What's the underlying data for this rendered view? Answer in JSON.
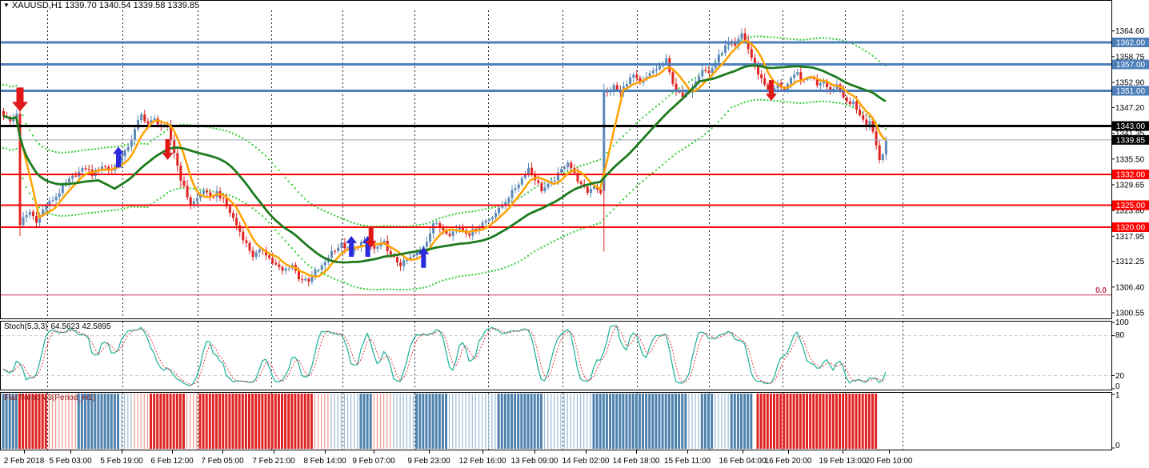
{
  "header": {
    "title": "XAUUSD,H1  1339.70 1340.54 1339.58 1339.85"
  },
  "panels": {
    "stoch": {
      "label": "Stoch(5,3,3)",
      "values": "64.5623 42.5895",
      "axis_labels": [
        [
          100,
          406
        ],
        [
          80,
          422
        ],
        [
          20,
          473
        ],
        [
          0,
          486
        ]
      ],
      "level_lines": [
        80,
        20
      ]
    },
    "flat": {
      "label": "Flat Trend V3(Period_H1)",
      "axis_labels": [
        [
          1,
          497
        ],
        [
          0,
          560
        ]
      ]
    }
  },
  "colors": {
    "up": "#5d89ba",
    "down": "#e02424",
    "maFast": "#ffa200",
    "maSlow": "#1d7a1d",
    "band": "#33cc33",
    "blueLine": "#4d7fba",
    "redLine": "#ff0000",
    "blackLine": "#000000",
    "priceLine": "#9aa7b5",
    "zeroLine": "#d03050",
    "stochK": "#2ab5a0",
    "stochD": "#e03a3a",
    "grid": "#c9c9c9",
    "sep": "#222222",
    "flat": {
      "R": "#e02424",
      "r": "#f0988e",
      "B": "#4f81ae",
      "b": "#9bbad6"
    },
    "badgeText": "#ffffff",
    "axisText": "#000000",
    "arrowUp": "#2b2bdd",
    "arrowDown": "#e01818"
  },
  "chart_data": {
    "type": "candlestick",
    "symbol": "XAUUSD",
    "timeframe": "H1",
    "ohlc_display": {
      "open": "1339.70",
      "high": "1340.54",
      "low": "1339.58",
      "close": "1339.85"
    },
    "bar_count": 270,
    "y_ticks": [
      1364.6,
      1358.75,
      1352.9,
      1347.2,
      1341.35,
      1335.5,
      1329.65,
      1323.8,
      1317.95,
      1312.25,
      1306.4,
      1300.55
    ],
    "x_labels": [
      [
        30,
        "2 Feb 2018"
      ],
      [
        88,
        "5 Feb 03:00"
      ],
      [
        152,
        "5 Feb 19:00"
      ],
      [
        215,
        "6 Feb 12:00"
      ],
      [
        278,
        "7 Feb 05:00"
      ],
      [
        342,
        "7 Feb 21:00"
      ],
      [
        406,
        "8 Feb 14:00"
      ],
      [
        467,
        "9 Feb 07:00"
      ],
      [
        536,
        "9 Feb 23:00"
      ],
      [
        603,
        "12 Feb 16:00"
      ],
      [
        668,
        "13 Feb 09:00"
      ],
      [
        732,
        "14 Feb 02:00"
      ],
      [
        795,
        "14 Feb 18:00"
      ],
      [
        859,
        "15 Feb 11:00"
      ],
      [
        928,
        "16 Feb 04:00"
      ],
      [
        985,
        "16 Feb 20:00"
      ],
      [
        1053,
        "19 Feb 13:00"
      ],
      [
        1111,
        "20 Feb 10:00"
      ]
    ],
    "day_separators_x": [
      59,
      153,
      247,
      339,
      428,
      518,
      610,
      703,
      796,
      886,
      978,
      1056,
      1128
    ],
    "hlines": [
      {
        "price": 1362.0,
        "color": "blueLine",
        "w": 3,
        "badge": "1362.00",
        "badgeColor": "#4d7fba"
      },
      {
        "price": 1357.0,
        "color": "blueLine",
        "w": 3,
        "badge": "1357.00",
        "badgeColor": "#4d7fba"
      },
      {
        "price": 1351.0,
        "color": "blueLine",
        "w": 3,
        "badge": "1351.00",
        "badgeColor": "#4d7fba"
      },
      {
        "price": 1343.0,
        "color": "blackLine",
        "w": 3,
        "badge": "1343.00",
        "badgeColor": "#000000"
      },
      {
        "price": 1339.85,
        "color": "priceLine",
        "w": 1,
        "badge": "1339.85",
        "badgeColor": "#000000"
      },
      {
        "price": 1332.0,
        "color": "redLine",
        "w": 2,
        "badge": "1332.00",
        "badgeColor": "#ff0000"
      },
      {
        "price": 1325.0,
        "color": "redLine",
        "w": 2,
        "badge": "1325.00",
        "badgeColor": "#ff0000"
      },
      {
        "price": 1320.0,
        "color": "redLine",
        "w": 2,
        "badge": "1320.00",
        "badgeColor": "#ff0000"
      },
      {
        "price": 1304.6,
        "color": "zeroLine",
        "w": 1,
        "badge": null
      }
    ],
    "zero_label": "0.0",
    "close_anchors": [
      [
        0,
        1345.5
      ],
      [
        2,
        1344
      ],
      [
        4,
        1346
      ],
      [
        5,
        1321
      ],
      [
        6,
        1322
      ],
      [
        8,
        1323.5
      ],
      [
        10,
        1321.5
      ],
      [
        13,
        1325
      ],
      [
        16,
        1327
      ],
      [
        19,
        1330
      ],
      [
        22,
        1332
      ],
      [
        25,
        1333.5
      ],
      [
        27,
        1332
      ],
      [
        30,
        1334
      ],
      [
        33,
        1333
      ],
      [
        35,
        1335
      ],
      [
        37,
        1337
      ],
      [
        39,
        1340
      ],
      [
        41,
        1344
      ],
      [
        42,
        1345.5
      ],
      [
        44,
        1343.5
      ],
      [
        46,
        1344.5
      ],
      [
        48,
        1343
      ],
      [
        50,
        1342.5
      ],
      [
        52,
        1337
      ],
      [
        54,
        1331
      ],
      [
        56,
        1327
      ],
      [
        57,
        1325
      ],
      [
        59,
        1326.5
      ],
      [
        61,
        1328.5
      ],
      [
        63,
        1326.5
      ],
      [
        65,
        1328
      ],
      [
        67,
        1326
      ],
      [
        70,
        1322
      ],
      [
        73,
        1317.5
      ],
      [
        76,
        1313.5
      ],
      [
        79,
        1315
      ],
      [
        82,
        1312
      ],
      [
        85,
        1310
      ],
      [
        88,
        1311.5
      ],
      [
        90,
        1308.5
      ],
      [
        93,
        1307.5
      ],
      [
        95,
        1310
      ],
      [
        97,
        1311
      ],
      [
        100,
        1314.5
      ],
      [
        103,
        1316
      ],
      [
        106,
        1314.5
      ],
      [
        109,
        1316.5
      ],
      [
        111,
        1317
      ],
      [
        113,
        1315
      ],
      [
        116,
        1316.5
      ],
      [
        118,
        1313.5
      ],
      [
        121,
        1311.5
      ],
      [
        124,
        1313
      ],
      [
        127,
        1314.5
      ],
      [
        129,
        1317
      ],
      [
        131,
        1321
      ],
      [
        133,
        1320
      ],
      [
        136,
        1318.5
      ],
      [
        139,
        1320
      ],
      [
        142,
        1318.5
      ],
      [
        145,
        1320.5
      ],
      [
        148,
        1322
      ],
      [
        151,
        1324
      ],
      [
        154,
        1327
      ],
      [
        157,
        1330
      ],
      [
        160,
        1333.5
      ],
      [
        162,
        1331
      ],
      [
        164,
        1328.5
      ],
      [
        167,
        1330
      ],
      [
        170,
        1333
      ],
      [
        172,
        1335
      ],
      [
        174,
        1332
      ],
      [
        176,
        1329.5
      ],
      [
        178,
        1328
      ],
      [
        180,
        1329.5
      ],
      [
        182,
        1328
      ],
      [
        183,
        1351
      ],
      [
        184,
        1350.5
      ],
      [
        186,
        1352
      ],
      [
        188,
        1350.5
      ],
      [
        190,
        1353
      ],
      [
        192,
        1354.5
      ],
      [
        194,
        1352.5
      ],
      [
        196,
        1354
      ],
      [
        198,
        1355.5
      ],
      [
        200,
        1356.5
      ],
      [
        202,
        1358
      ],
      [
        203,
        1355
      ],
      [
        205,
        1351
      ],
      [
        207,
        1349.5
      ],
      [
        209,
        1351
      ],
      [
        211,
        1353.5
      ],
      [
        213,
        1356
      ],
      [
        215,
        1355
      ],
      [
        217,
        1357.5
      ],
      [
        219,
        1360
      ],
      [
        221,
        1362
      ],
      [
        223,
        1361
      ],
      [
        225,
        1364
      ],
      [
        226,
        1362.5
      ],
      [
        228,
        1358.5
      ],
      [
        230,
        1355
      ],
      [
        232,
        1352.5
      ],
      [
        234,
        1350.5
      ],
      [
        236,
        1352.5
      ],
      [
        238,
        1351.5
      ],
      [
        240,
        1353.5
      ],
      [
        242,
        1355
      ],
      [
        244,
        1353
      ],
      [
        246,
        1354.5
      ],
      [
        248,
        1352.5
      ],
      [
        250,
        1353.5
      ],
      [
        252,
        1351
      ],
      [
        254,
        1352.5
      ],
      [
        256,
        1350
      ],
      [
        258,
        1347.5
      ],
      [
        259,
        1348.5
      ],
      [
        261,
        1345.5
      ],
      [
        263,
        1343
      ],
      [
        264,
        1344.5
      ],
      [
        265,
        1341.5
      ],
      [
        266,
        1338.5
      ],
      [
        267,
        1335.5
      ],
      [
        268,
        1336.5
      ],
      [
        269,
        1339.85
      ]
    ],
    "special_bars": {
      "5": [
        1345.8,
        1320.5,
        1346.5,
        1318.0
      ],
      "183": [
        1328.3,
        1351.2,
        1352.6,
        1326.5
      ]
    },
    "aux_red_wick": {
      "bar": 183,
      "from": 1330.0,
      "to": 1314.5
    },
    "arrows": [
      {
        "bar": 5,
        "tip_price": 1346.3,
        "dir": "down",
        "big": true
      },
      {
        "bar": 35,
        "tip_price": 1338.3,
        "dir": "up",
        "big": false
      },
      {
        "bar": 50,
        "tip_price": 1335.3,
        "dir": "down",
        "big": false
      },
      {
        "bar": 106,
        "tip_price": 1318.0,
        "dir": "up",
        "big": false
      },
      {
        "bar": 111,
        "tip_price": 1318.0,
        "dir": "up",
        "big": false
      },
      {
        "bar": 112,
        "tip_price": 1315.3,
        "dir": "down",
        "big": false
      },
      {
        "bar": 128,
        "tip_price": 1315.5,
        "dir": "up",
        "big": false
      },
      {
        "bar": 234,
        "tip_price": 1348.7,
        "dir": "down",
        "big": false
      }
    ],
    "flat_segments": [
      [
        0,
        5,
        "B"
      ],
      [
        5,
        14,
        "R"
      ],
      [
        14,
        23,
        "r"
      ],
      [
        23,
        36,
        "B"
      ],
      [
        36,
        40,
        "b"
      ],
      [
        40,
        45,
        "r"
      ],
      [
        45,
        56,
        "R"
      ],
      [
        56,
        60,
        "r"
      ],
      [
        60,
        95,
        "R"
      ],
      [
        95,
        100,
        "r"
      ],
      [
        100,
        109,
        "b"
      ],
      [
        109,
        113,
        "B"
      ],
      [
        113,
        119,
        "r"
      ],
      [
        119,
        126,
        "b"
      ],
      [
        126,
        136,
        "B"
      ],
      [
        136,
        151,
        "b"
      ],
      [
        151,
        165,
        "B"
      ],
      [
        165,
        180,
        "b"
      ],
      [
        180,
        209,
        "B"
      ],
      [
        209,
        213,
        "b"
      ],
      [
        213,
        217,
        "B"
      ],
      [
        217,
        222,
        "b"
      ],
      [
        222,
        229,
        "B"
      ],
      [
        230,
        267,
        "R"
      ]
    ]
  }
}
